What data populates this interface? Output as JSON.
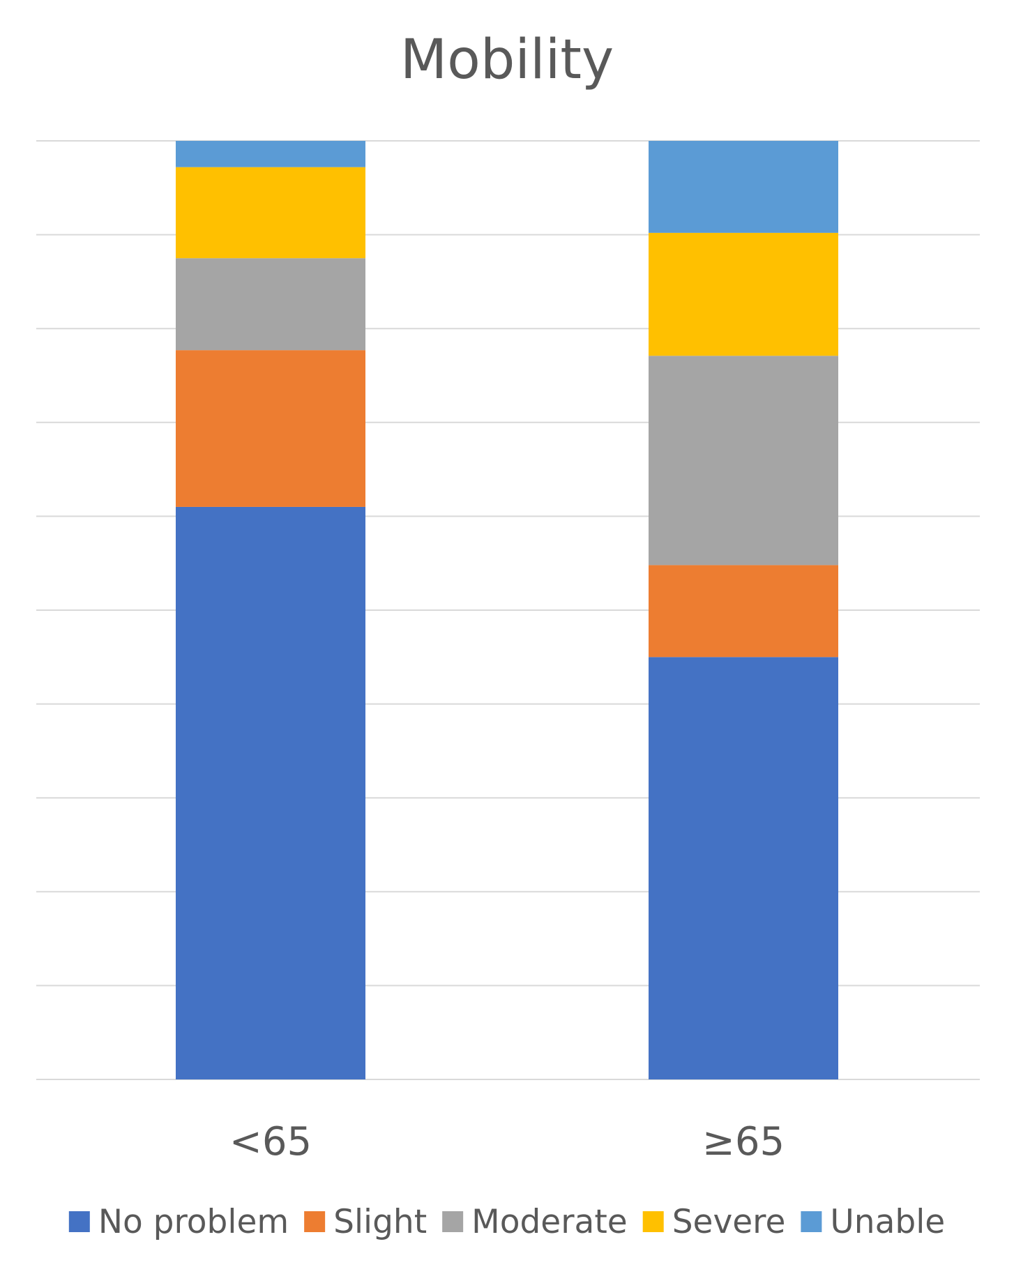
{
  "chart_data": {
    "type": "bar",
    "stacked": true,
    "title": "Mobility",
    "xlabel": "",
    "ylabel": "",
    "categories": [
      "<65",
      "≥65"
    ],
    "ylim": [
      0,
      100
    ],
    "grid": true,
    "legend_position": "bottom",
    "series": [
      {
        "name": "No problem",
        "color": "#4472C4",
        "values": [
          61,
          45
        ]
      },
      {
        "name": "Slight",
        "color": "#ED7D31",
        "values": [
          16.7,
          9.8
        ]
      },
      {
        "name": "Moderate",
        "color": "#A5A5A5",
        "values": [
          9.8,
          22.3
        ]
      },
      {
        "name": "Severe",
        "color": "#FFC000",
        "values": [
          9.7,
          13.1
        ]
      },
      {
        "name": "Unable",
        "color": "#5B9BD5",
        "values": [
          2.8,
          9.8
        ]
      }
    ]
  }
}
